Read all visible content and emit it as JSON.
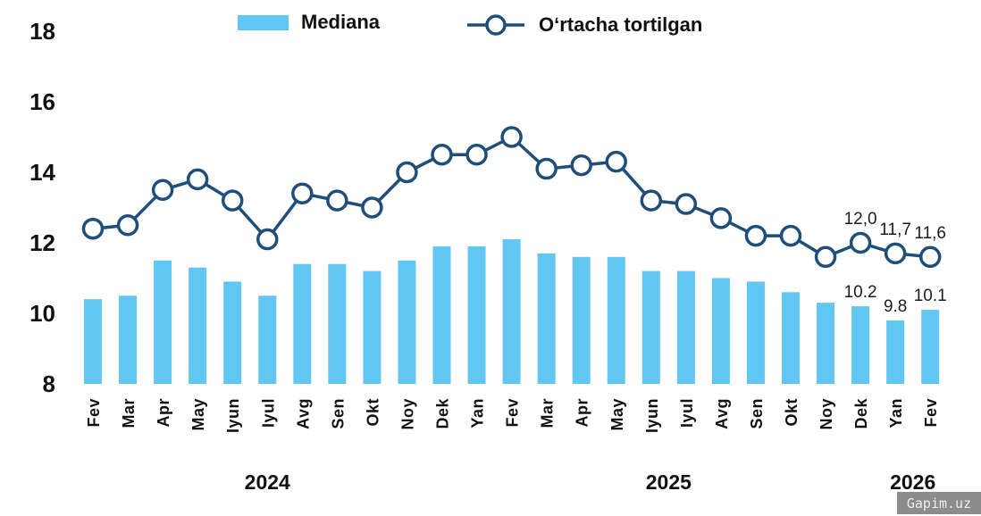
{
  "chart_data": {
    "type": "combo",
    "title": "",
    "xlabel": "",
    "ylabel": "",
    "categories": [
      "Fev",
      "Mar",
      "Apr",
      "May",
      "Iyun",
      "Iyul",
      "Avg",
      "Sen",
      "Okt",
      "Noy",
      "Dek",
      "Yan",
      "Fev",
      "Mar",
      "Apr",
      "May",
      "Iyun",
      "Iyul",
      "Avg",
      "Sen",
      "Okt",
      "Noy",
      "Dek",
      "Yan",
      "Fev"
    ],
    "year_groups": [
      {
        "label": "2024",
        "from": 0,
        "to": 10
      },
      {
        "label": "2025",
        "from": 11,
        "to": 22
      },
      {
        "label": "2026",
        "from": 23,
        "to": 24
      }
    ],
    "y_ticks": [
      8,
      10,
      12,
      14,
      16,
      18
    ],
    "ylim": [
      8,
      18
    ],
    "grid": false,
    "legend_position": "top",
    "series": [
      {
        "name": "Mediana",
        "type": "bar",
        "color": "#62C6F2",
        "values": [
          10.4,
          10.5,
          11.5,
          11.3,
          10.9,
          10.5,
          11.4,
          11.4,
          11.2,
          11.5,
          11.9,
          11.9,
          12.1,
          11.7,
          11.6,
          11.6,
          11.2,
          11.2,
          11.0,
          10.9,
          10.6,
          10.3,
          10.2,
          9.8,
          10.1
        ],
        "point_labels": {
          "22": "10.2",
          "23": "9.8",
          "24": "10.1"
        }
      },
      {
        "name": "Oʻrtacha tortilgan",
        "type": "line",
        "color": "#1F4E79",
        "marker": "circle",
        "values": [
          12.4,
          12.5,
          13.5,
          13.8,
          13.2,
          12.1,
          13.4,
          13.2,
          13.0,
          14.0,
          14.5,
          14.5,
          15.0,
          14.1,
          14.2,
          14.3,
          13.2,
          13.1,
          12.7,
          12.2,
          12.2,
          11.6,
          12.0,
          11.7,
          11.6
        ],
        "point_labels": {
          "22": "12,0",
          "23": "11,7",
          "24": "11,6"
        }
      }
    ]
  },
  "watermark": {
    "text": "Gapim.uz"
  }
}
